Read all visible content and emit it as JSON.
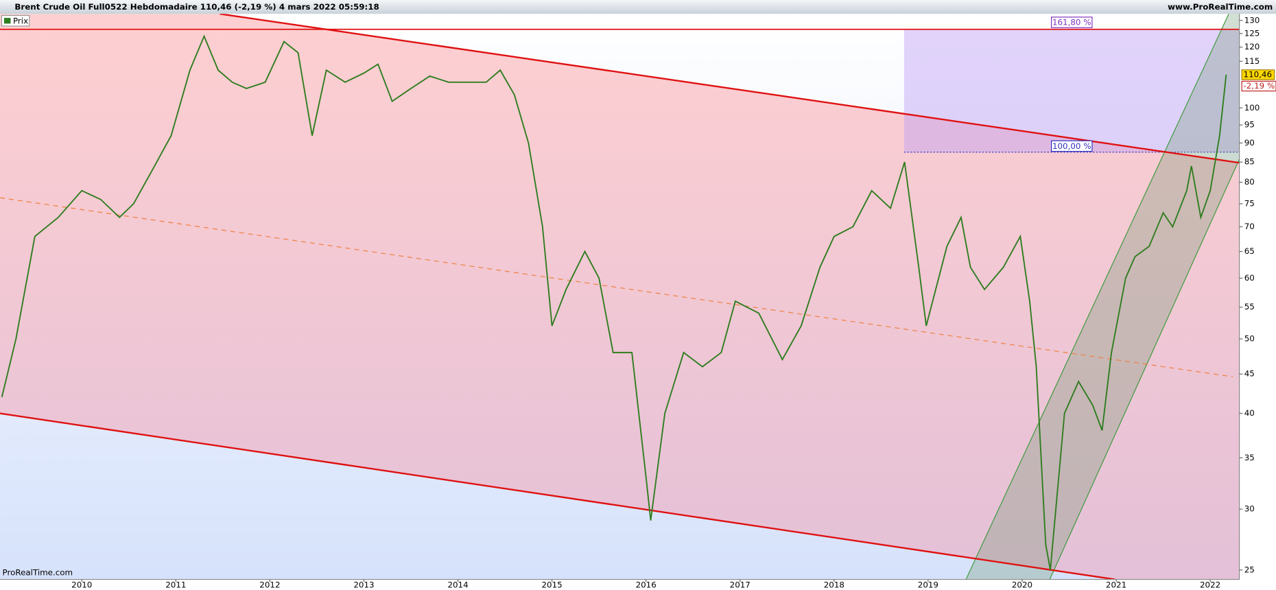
{
  "chart_data": {
    "type": "line",
    "title": "Brent Crude Oil Full0522 Hebdomadaire 110,46 (-2,19 %) 4 mars 2022 05:59:18",
    "source": "www.ProRealTime.com",
    "watermark": "ProRealTime.com",
    "x": [
      2009.15,
      2009.3,
      2009.5,
      2009.75,
      2010.0,
      2010.2,
      2010.4,
      2010.55,
      2010.75,
      2010.95,
      2011.15,
      2011.3,
      2011.45,
      2011.6,
      2011.75,
      2011.95,
      2012.15,
      2012.3,
      2012.45,
      2012.6,
      2012.8,
      2013.0,
      2013.15,
      2013.3,
      2013.5,
      2013.7,
      2013.9,
      2014.1,
      2014.3,
      2014.45,
      2014.6,
      2014.75,
      2014.9,
      2015.0,
      2015.15,
      2015.35,
      2015.5,
      2015.65,
      2015.85,
      2016.0,
      2016.05,
      2016.2,
      2016.4,
      2016.6,
      2016.8,
      2016.95,
      2017.2,
      2017.45,
      2017.65,
      2017.85,
      2018.0,
      2018.2,
      2018.4,
      2018.6,
      2018.75,
      2018.9,
      2018.98,
      2019.2,
      2019.35,
      2019.45,
      2019.6,
      2019.8,
      2019.98,
      2020.08,
      2020.15,
      2020.25,
      2020.3,
      2020.45,
      2020.6,
      2020.75,
      2020.85,
      2020.95,
      2021.1,
      2021.2,
      2021.35,
      2021.5,
      2021.6,
      2021.75,
      2021.8,
      2021.9,
      2022.0,
      2022.1,
      2022.17
    ],
    "series": [
      {
        "name": "Prix",
        "color": "#2f7d1f",
        "values": [
          42,
          50,
          68,
          72,
          78,
          76,
          72,
          75,
          83,
          92,
          112,
          124,
          112,
          108,
          106,
          108,
          122,
          118,
          92,
          112,
          108,
          111,
          114,
          102,
          106,
          110,
          108,
          108,
          108,
          112,
          104,
          90,
          70,
          52,
          58,
          65,
          60,
          48,
          48,
          33,
          29,
          40,
          48,
          46,
          48,
          56,
          54,
          47,
          52,
          62,
          68,
          70,
          78,
          74,
          85,
          62,
          52,
          66,
          72,
          62,
          58,
          62,
          68,
          56,
          46,
          27,
          25,
          40,
          44,
          41,
          38,
          48,
          60,
          64,
          66,
          73,
          70,
          78,
          84,
          72,
          78,
          92,
          110.46
        ]
      }
    ],
    "xlim": [
      2009.13,
      2022.31
    ],
    "ylim": [
      24.3,
      132.6
    ],
    "log_scale": true,
    "xticks": [
      2010,
      2011,
      2012,
      2013,
      2014,
      2015,
      2016,
      2017,
      2018,
      2019,
      2020,
      2021,
      2022
    ],
    "yticks": [
      25,
      30,
      35,
      40,
      45,
      50,
      55,
      60,
      65,
      70,
      75,
      80,
      85,
      90,
      95,
      100,
      115,
      120,
      125,
      130
    ],
    "last_price": {
      "value": 110.46,
      "label": "110,46"
    },
    "change_label": "-2,19 %",
    "annotations": [
      "161,80 %",
      "100,00 %"
    ]
  }
}
